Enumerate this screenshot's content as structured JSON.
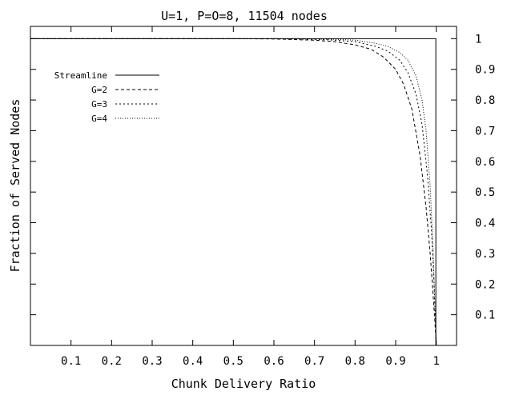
{
  "chart_data": {
    "type": "line",
    "title": "U=1, P=O=8, 11504 nodes",
    "xlabel": "Chunk Delivery Ratio",
    "ylabel": "Fraction of Served Nodes",
    "xlim": [
      0,
      1.05
    ],
    "ylim": [
      0,
      1.04
    ],
    "x_ticks": [
      "0.1",
      "0.2",
      "0.3",
      "0.4",
      "0.5",
      "0.6",
      "0.7",
      "0.8",
      "0.9",
      "1"
    ],
    "x_tick_values": [
      0.1,
      0.2,
      0.3,
      0.4,
      0.5,
      0.6,
      0.7,
      0.8,
      0.9,
      1.0
    ],
    "y_ticks": [
      "0.1",
      "0.2",
      "0.3",
      "0.4",
      "0.5",
      "0.6",
      "0.7",
      "0.8",
      "0.9",
      "1"
    ],
    "y_tick_values": [
      0.1,
      0.2,
      0.3,
      0.4,
      0.5,
      0.6,
      0.7,
      0.8,
      0.9,
      1.0
    ],
    "y_axis_side": "right",
    "grid": false,
    "legend_position": "top-left",
    "series": [
      {
        "name": "Streamline",
        "style": "solid",
        "x": [
          0,
          0.999,
          0.999,
          1.0
        ],
        "y": [
          1.0,
          1.0,
          0.0,
          0.0
        ]
      },
      {
        "name": "G=2",
        "style": "dashed",
        "x": [
          0,
          0.5,
          0.6,
          0.7,
          0.75,
          0.8,
          0.84,
          0.87,
          0.9,
          0.92,
          0.94,
          0.96,
          0.975,
          0.985,
          0.992,
          0.997,
          1.0
        ],
        "y": [
          1.0,
          1.0,
          0.999,
          0.995,
          0.99,
          0.98,
          0.965,
          0.94,
          0.9,
          0.85,
          0.77,
          0.62,
          0.45,
          0.3,
          0.17,
          0.07,
          0.0
        ]
      },
      {
        "name": "G=3",
        "style": "dotted",
        "x": [
          0,
          0.6,
          0.7,
          0.75,
          0.8,
          0.85,
          0.88,
          0.91,
          0.93,
          0.95,
          0.965,
          0.978,
          0.988,
          0.994,
          0.998,
          1.0
        ],
        "y": [
          1.0,
          1.0,
          0.998,
          0.995,
          0.99,
          0.975,
          0.96,
          0.93,
          0.89,
          0.82,
          0.72,
          0.56,
          0.38,
          0.22,
          0.08,
          0.0
        ]
      },
      {
        "name": "G=4",
        "style": "fine-dotted",
        "x": [
          0,
          0.65,
          0.75,
          0.8,
          0.85,
          0.88,
          0.91,
          0.93,
          0.95,
          0.965,
          0.975,
          0.985,
          0.992,
          0.997,
          1.0
        ],
        "y": [
          1.0,
          1.0,
          0.998,
          0.995,
          0.985,
          0.975,
          0.955,
          0.93,
          0.88,
          0.8,
          0.7,
          0.52,
          0.32,
          0.12,
          0.0
        ]
      }
    ]
  }
}
